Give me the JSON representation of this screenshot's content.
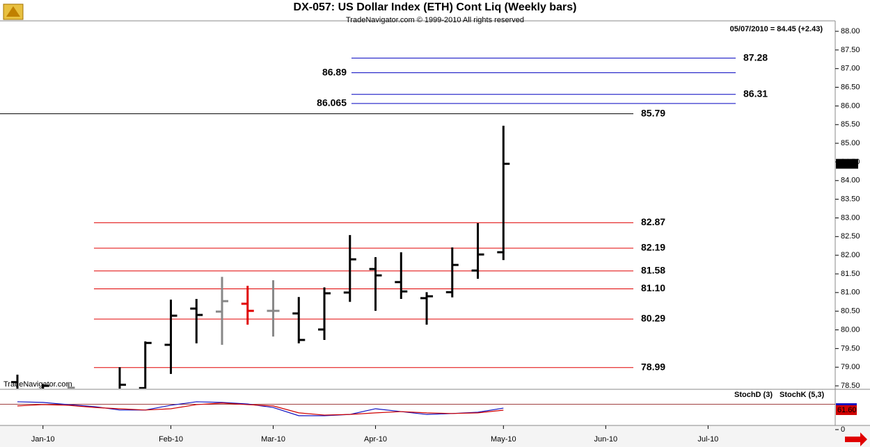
{
  "chart_data": {
    "type": "ohlc",
    "title": "DX-057:  US Dollar Index (ETH) Cont Liq  (Weekly bars)",
    "subtitle": "TradeNavigator.com © 1999-2010 All rights reserved",
    "last_quote": "05/07/2010 = 84.45 (+2.43)",
    "watermark": "TradeNavigator.com",
    "x": [
      0,
      1,
      2,
      4,
      5,
      6,
      7,
      8,
      9,
      10,
      11,
      12,
      13,
      14,
      15,
      16,
      17,
      18,
      19
    ],
    "open": [
      78.6,
      78.4,
      78.4,
      78.3,
      78.44,
      79.6,
      80.57,
      80.49,
      80.7,
      80.51,
      80.44,
      80.01,
      81.0,
      81.63,
      81.28,
      80.85,
      81.01,
      81.59,
      82.08
    ],
    "high": [
      78.8,
      78.55,
      78.6,
      79.0,
      79.69,
      80.81,
      80.83,
      81.42,
      81.18,
      81.33,
      80.88,
      81.14,
      82.54,
      81.95,
      82.08,
      81.01,
      82.21,
      82.86,
      85.47
    ],
    "low": [
      78.3,
      78.2,
      78.2,
      78.4,
      78.4,
      78.82,
      79.64,
      79.6,
      80.14,
      79.82,
      79.64,
      79.73,
      80.75,
      80.51,
      80.83,
      80.14,
      80.87,
      81.37,
      81.87
    ],
    "close": [
      78.4,
      78.5,
      78.45,
      78.53,
      79.65,
      80.38,
      80.4,
      80.77,
      80.51,
      80.51,
      79.73,
      80.98,
      81.89,
      81.46,
      81.03,
      80.9,
      81.74,
      82.02,
      84.45
    ],
    "colors": [
      "#000",
      "#000",
      "#888",
      "#000",
      "#000",
      "#000",
      "#000",
      "#888",
      "#e00000",
      "#888",
      "#000",
      "#000",
      "#000",
      "#000",
      "#000",
      "#000",
      "#000",
      "#000",
      "#000"
    ],
    "xlim": [
      -0.68,
      31.97
    ],
    "xticks": [
      {
        "value": 1,
        "label": "Jan-10"
      },
      {
        "value": 6,
        "label": "Feb-10"
      },
      {
        "value": 10,
        "label": "Mar-10"
      },
      {
        "value": 14,
        "label": "Apr-10"
      },
      {
        "value": 19,
        "label": "May-10"
      },
      {
        "value": 23,
        "label": "Jun-10"
      },
      {
        "value": 27,
        "label": "Jul-10"
      }
    ],
    "ylim": [
      78.24,
      88.28
    ],
    "yticks": [
      {
        "value": 88,
        "label": "88.00"
      },
      {
        "value": 87.5,
        "label": "87.50"
      },
      {
        "value": 87,
        "label": "87.00"
      },
      {
        "value": 86.5,
        "label": "86.50"
      },
      {
        "value": 86,
        "label": "86.00"
      },
      {
        "value": 85.5,
        "label": "85.50"
      },
      {
        "value": 85,
        "label": "85.00"
      },
      {
        "value": 84.5,
        "label": "84.50"
      },
      {
        "value": 84,
        "label": "84.00"
      },
      {
        "value": 83.5,
        "label": "83.50"
      },
      {
        "value": 83,
        "label": "83.00"
      },
      {
        "value": 82.5,
        "label": "82.50"
      },
      {
        "value": 82,
        "label": "82.00"
      },
      {
        "value": 81.5,
        "label": "81.50"
      },
      {
        "value": 81,
        "label": "81.00"
      },
      {
        "value": 80.5,
        "label": "80.50"
      },
      {
        "value": 80,
        "label": "80.00"
      },
      {
        "value": 79.5,
        "label": "79.50"
      },
      {
        "value": 79,
        "label": "79.00"
      },
      {
        "value": 78.5,
        "label": "78.50"
      }
    ],
    "level_groups": [
      {
        "color": "#0000c0",
        "lines": [
          87.28,
          86.89,
          86.31,
          86.065
        ],
        "label_sides": [
          "right",
          "left",
          "right",
          "left"
        ]
      },
      {
        "color": "#000000",
        "lines": [
          85.79
        ],
        "label_sides": [
          "right"
        ]
      },
      {
        "color": "#e00000",
        "lines": [
          82.87,
          82.19,
          81.58,
          {
            "value": 81.1,
            "label": "81.10"
          },
          80.29,
          78.99
        ],
        "label_sides": [
          "right",
          "right",
          "right",
          "right",
          "right",
          "right"
        ]
      }
    ],
    "stochastic": {
      "x": [
        0,
        1,
        2,
        3,
        4,
        5,
        6,
        7,
        8,
        9,
        10,
        11,
        12,
        13,
        14,
        15,
        16,
        17,
        18,
        19
      ],
      "ylim": [
        0,
        100
      ],
      "yticks": [
        0
      ],
      "levels": [
        80
      ],
      "series": [
        {
          "name": "StochD (3)",
          "color": "#d00000",
          "values": [
            75,
            79,
            77,
            70,
            66,
            62,
            66,
            79,
            84,
            79,
            75,
            53,
            46,
            48,
            53,
            57,
            53,
            51,
            53,
            61.6
          ],
          "value_labels": [
            null,
            null,
            null,
            null,
            null,
            null,
            null,
            null,
            null,
            null,
            null,
            null,
            null,
            null,
            null,
            null,
            null,
            null,
            null,
            "61.60"
          ]
        },
        {
          "name": "StochK (5,3)",
          "color": "#1010c0",
          "values": [
            88,
            86,
            79,
            73,
            62,
            62,
            77,
            88,
            86,
            81,
            70,
            44,
            44,
            48,
            66,
            57,
            48,
            51,
            55,
            68
          ]
        }
      ]
    }
  }
}
